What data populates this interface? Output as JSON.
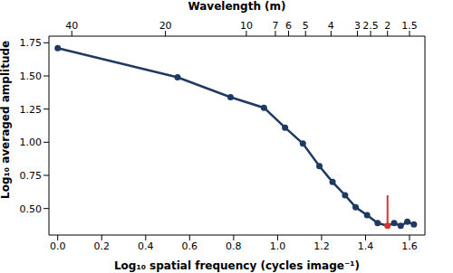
{
  "chart_data": {
    "type": "line",
    "xlabel": "Log₁₀ spatial frequency (cycles image⁻¹)",
    "ylabel": "Log₁₀ averaged amplitude",
    "x2label": "Wavelength (m)",
    "x": [
      0,
      0.545,
      0.786,
      0.938,
      1.034,
      1.115,
      1.19,
      1.25,
      1.307,
      1.355,
      1.407,
      1.455,
      1.5,
      1.53,
      1.56,
      1.59,
      1.62
    ],
    "values": [
      1.71,
      1.49,
      1.34,
      1.26,
      1.11,
      0.99,
      0.82,
      0.7,
      0.6,
      0.51,
      0.45,
      0.39,
      0.37,
      0.39,
      0.37,
      0.4,
      0.38
    ],
    "color": "#1f3a60",
    "marker": "circle",
    "xlim": [
      -0.04,
      1.67
    ],
    "xticks": [
      {
        "value": 0,
        "label": "0.0"
      },
      0.2,
      0.4,
      0.6,
      0.8,
      {
        "value": 1,
        "label": "1.0"
      },
      1.2,
      1.4,
      1.6
    ],
    "ylim": [
      0.3,
      1.8
    ],
    "yticks": [
      {
        "value": 0.5,
        "label": "0.50"
      },
      {
        "value": 0.75,
        "label": "0.75"
      },
      {
        "value": 1,
        "label": "1.00"
      },
      {
        "value": 1.25,
        "label": "1.25"
      },
      {
        "value": 1.5,
        "label": "1.50"
      },
      {
        "value": 1.75,
        "label": "1.75"
      }
    ],
    "x2ticks": [
      {
        "value": 0.064,
        "label": "40"
      },
      {
        "value": 0.49,
        "label": "20"
      },
      {
        "value": 0.858,
        "label": "10"
      },
      {
        "value": 0.99,
        "label": "7"
      },
      {
        "value": 1.05,
        "label": "6"
      },
      {
        "value": 1.127,
        "label": "5"
      },
      {
        "value": 1.243,
        "label": "4"
      },
      {
        "value": 1.363,
        "label": "3"
      },
      {
        "value": 1.423,
        "label": "2.5"
      },
      {
        "value": 1.5,
        "label": "2"
      },
      {
        "value": 1.6,
        "label": "1.5"
      }
    ],
    "annotations": [
      {
        "x": 1.5,
        "y": [
          0.37,
          0.6
        ],
        "color": "#e03030"
      }
    ]
  }
}
